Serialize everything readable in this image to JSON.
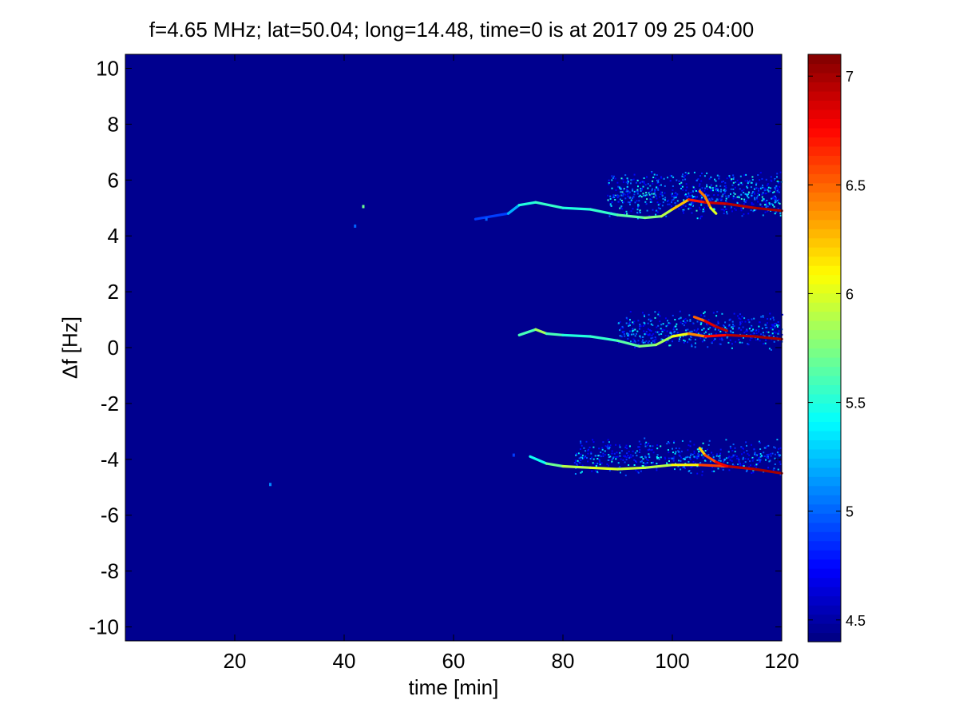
{
  "chart_data": {
    "type": "heatmap",
    "title": "f=4.65 MHz;  lat=50.04; long=14.48, time=0 is at 2017 09 25 04:00",
    "xlabel": "time [min]",
    "ylabel": "Δf [Hz]",
    "xlim": [
      0,
      120
    ],
    "ylim": [
      -10.5,
      10.5
    ],
    "x_ticks": [
      20,
      40,
      60,
      80,
      100,
      120
    ],
    "y_ticks": [
      -10,
      -8,
      -6,
      -4,
      -2,
      0,
      2,
      4,
      6,
      8,
      10
    ],
    "background_color": "#00008f",
    "colorbar": {
      "colormap": "jet",
      "range": [
        4.4,
        7.1
      ],
      "ticks": [
        4.5,
        5,
        5.5,
        6,
        6.5,
        7
      ],
      "tick_labels": [
        "4.5",
        "5",
        "5.5",
        "6",
        "6.5",
        "7"
      ]
    },
    "traces": [
      {
        "points": [
          [
            64,
            4.6
          ],
          [
            70,
            4.8
          ],
          [
            72,
            5.1
          ],
          [
            75,
            5.2
          ],
          [
            80,
            5.0
          ],
          [
            85,
            4.95
          ],
          [
            90,
            4.75
          ],
          [
            95,
            4.65
          ],
          [
            98,
            4.7
          ],
          [
            100,
            4.95
          ],
          [
            103,
            5.3
          ],
          [
            106,
            5.2
          ],
          [
            110,
            5.15
          ],
          [
            115,
            5.0
          ],
          [
            120,
            4.9
          ]
        ],
        "intensity": [
          4.8,
          5.0,
          5.4,
          5.6,
          5.5,
          5.5,
          5.6,
          5.7,
          5.8,
          6.0,
          6.5,
          6.9,
          6.9,
          7.0,
          7.0
        ]
      },
      {
        "points": [
          [
            72,
            0.45
          ],
          [
            75,
            0.65
          ],
          [
            77,
            0.5
          ],
          [
            80,
            0.45
          ],
          [
            85,
            0.4
          ],
          [
            90,
            0.25
          ],
          [
            94,
            0.05
          ],
          [
            97,
            0.1
          ],
          [
            100,
            0.4
          ],
          [
            103,
            0.5
          ],
          [
            106,
            0.4
          ],
          [
            110,
            0.45
          ],
          [
            115,
            0.4
          ],
          [
            120,
            0.3
          ]
        ],
        "intensity": [
          5.2,
          6.0,
          5.7,
          5.5,
          5.5,
          5.6,
          5.7,
          5.8,
          5.9,
          6.2,
          6.6,
          6.9,
          7.0,
          7.0
        ]
      },
      {
        "points": [
          [
            74,
            -3.9
          ],
          [
            77,
            -4.15
          ],
          [
            80,
            -4.25
          ],
          [
            85,
            -4.3
          ],
          [
            90,
            -4.35
          ],
          [
            95,
            -4.3
          ],
          [
            100,
            -4.2
          ],
          [
            105,
            -4.2
          ],
          [
            110,
            -4.25
          ],
          [
            115,
            -4.35
          ],
          [
            120,
            -4.5
          ]
        ],
        "intensity": [
          5.3,
          5.6,
          5.8,
          6.0,
          6.0,
          5.9,
          5.9,
          6.3,
          6.9,
          7.0,
          7.0
        ]
      },
      {
        "points": [
          [
            105,
            5.6
          ],
          [
            106,
            5.4
          ],
          [
            107,
            5.0
          ],
          [
            108,
            4.8
          ]
        ],
        "intensity": [
          6.3,
          6.6,
          6.2,
          5.8
        ]
      },
      {
        "points": [
          [
            104,
            1.1
          ],
          [
            106,
            0.95
          ],
          [
            108,
            0.75
          ],
          [
            110,
            0.6
          ]
        ],
        "intensity": [
          6.2,
          6.8,
          6.9,
          7.0
        ]
      },
      {
        "points": [
          [
            105,
            -3.6
          ],
          [
            106,
            -3.85
          ],
          [
            108,
            -4.1
          ],
          [
            110,
            -4.25
          ]
        ],
        "intensity": [
          6.0,
          6.4,
          6.7,
          6.9
        ]
      }
    ],
    "speckle_regions": [
      {
        "x": [
          88,
          120
        ],
        "y": [
          4.6,
          6.4
        ],
        "count": 700,
        "intensity": [
          4.7,
          5.6
        ]
      },
      {
        "x": [
          90,
          120
        ],
        "y": [
          -0.1,
          1.4
        ],
        "count": 450,
        "intensity": [
          4.7,
          5.5
        ]
      },
      {
        "x": [
          82,
          120
        ],
        "y": [
          -4.6,
          -3.2
        ],
        "count": 500,
        "intensity": [
          4.7,
          5.5
        ]
      }
    ],
    "isolated_points": [
      {
        "x": 43.5,
        "y": 5.05,
        "value": 5.7
      },
      {
        "x": 42,
        "y": 4.35,
        "value": 5.0
      },
      {
        "x": 26.5,
        "y": -4.9,
        "value": 5.1
      },
      {
        "x": 66,
        "y": 4.6,
        "value": 5.0
      },
      {
        "x": 71,
        "y": -3.85,
        "value": 4.9
      }
    ]
  }
}
